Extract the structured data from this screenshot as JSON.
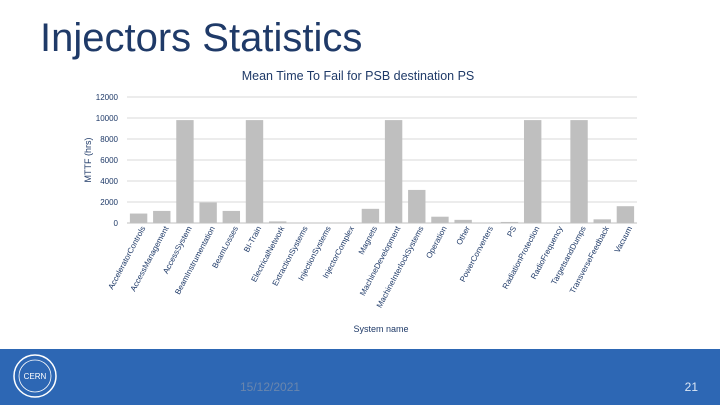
{
  "slide": {
    "title": "Injectors Statistics",
    "date": "15/12/2021",
    "page_number": "21"
  },
  "logo": {
    "text": "CERN",
    "icon": "cern-logo-icon"
  },
  "colors": {
    "bar": "#bfbfbf",
    "title": "#1f3a68",
    "footer": "#2d67b4",
    "grid": "#d9d9d9"
  },
  "chart_data": {
    "type": "bar",
    "title": "Mean Time To Fail for PSB destination PS",
    "xlabel": "System name",
    "ylabel": "MTTF (hrs)",
    "ylim": [
      0,
      12000
    ],
    "yticks": [
      0,
      2000,
      4000,
      6000,
      8000,
      10000,
      12000
    ],
    "grid": true,
    "categories": [
      "AcceleratorControls",
      "AccessManagement",
      "AccessSystem",
      "BeamInstrumentation",
      "BeamLosses",
      "BI-Train",
      "ElectricalNetwork",
      "ExtractionSystems",
      "InjectionSystems",
      "InjectorComplex",
      "Magnets",
      "MachineDevelopment",
      "MachineInterlockSystems",
      "Operation",
      "Other",
      "PowerConverters",
      "PS",
      "RadiationProtection",
      "RadioFrequency",
      "TargetsandDumps",
      "TransverseFeedback",
      "Vacuum"
    ],
    "values": [
      900,
      1150,
      9800,
      1950,
      1150,
      9800,
      150,
      0,
      0,
      50,
      1350,
      9800,
      3150,
      600,
      300,
      0,
      100,
      9800,
      0,
      9800,
      350,
      1600
    ]
  }
}
